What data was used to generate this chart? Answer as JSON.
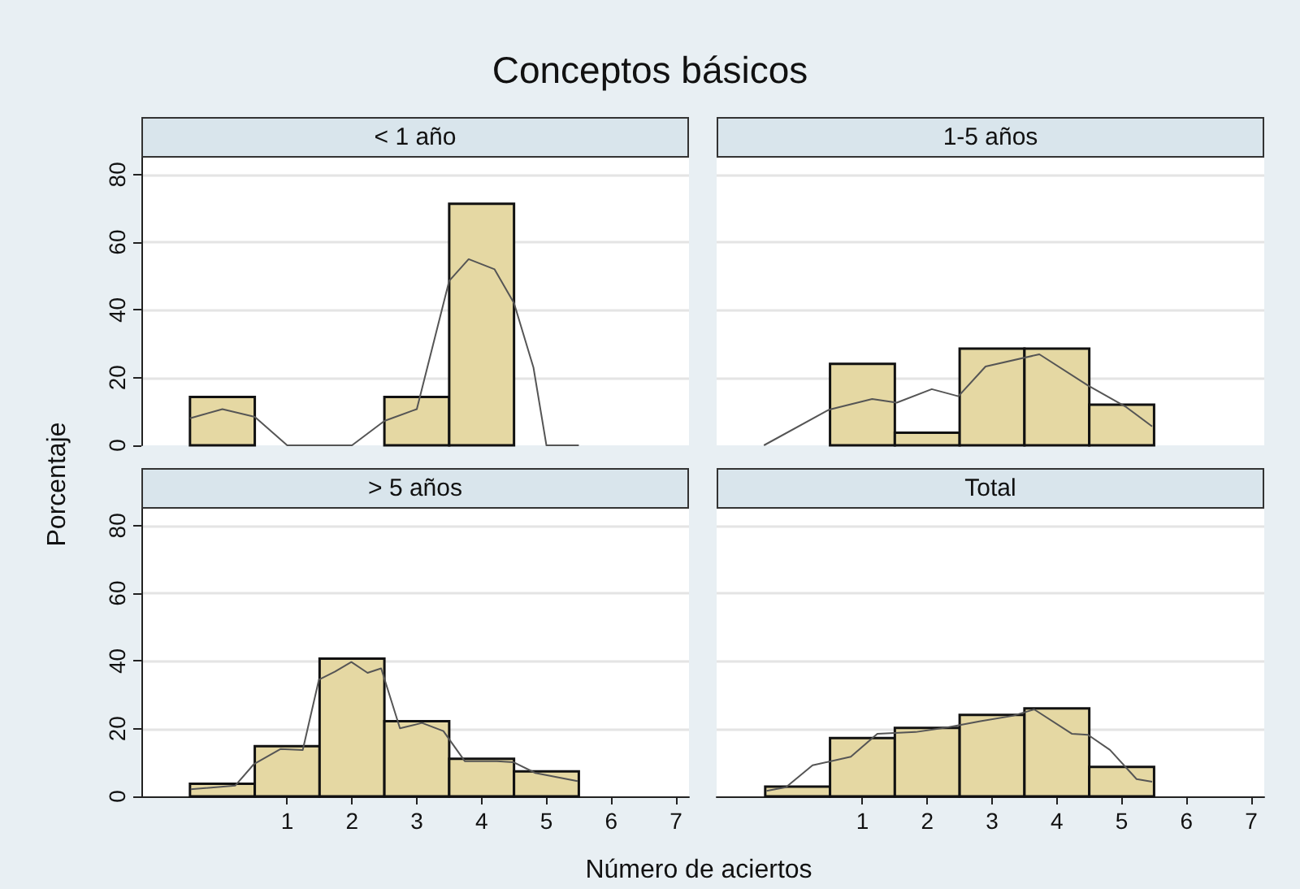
{
  "chart_data": [
    {
      "type": "histogram",
      "title": "Conceptos básicos",
      "subtitle": "< 1 año",
      "xlim": [
        -1.25,
        7.2
      ],
      "xticks": [
        1,
        2,
        3,
        4,
        5,
        6,
        7
      ],
      "ylim": [
        0,
        85
      ],
      "yticks": [
        0,
        20,
        40,
        60,
        80
      ],
      "grid": "y",
      "tick_labels": "y",
      "series": [
        {
          "type": "histogram",
          "color": "#e5d8a3",
          "bins": [
            -0.5,
            0.5,
            1.5,
            2.5,
            3.5,
            4.5,
            5.5
          ],
          "values": [
            14.3,
            0,
            0,
            14.3,
            71.4,
            0
          ]
        },
        {
          "type": "line",
          "color": "#555555",
          "x": [
            -0.5,
            0,
            0.5,
            1,
            2,
            2.5,
            3,
            3.5,
            3.8,
            4.2,
            4.5,
            4.8,
            5,
            5.5
          ],
          "values": [
            8,
            10.7,
            8.4,
            0,
            0,
            7.2,
            10.7,
            48.6,
            55,
            52,
            42,
            23,
            0,
            0
          ]
        }
      ]
    },
    {
      "type": "histogram",
      "subtitle": "1-5 años",
      "xlim": [
        -1.25,
        7.2
      ],
      "xticks": [
        1,
        2,
        3,
        4,
        5,
        6,
        7
      ],
      "ylim": [
        0,
        85
      ],
      "yticks": [
        0,
        20,
        40,
        60,
        80
      ],
      "grid": "y",
      "tick_labels": false,
      "series": [
        {
          "type": "histogram",
          "color": "#e5d8a3",
          "bins": [
            -0.5,
            0.5,
            1.5,
            2.5,
            3.5,
            4.5,
            5.5
          ],
          "values": [
            0,
            24.1,
            3.7,
            28.6,
            28.6,
            12
          ]
        },
        {
          "type": "line",
          "color": "#555555",
          "x": [
            -0.52,
            0.48,
            1.15,
            1.53,
            2.07,
            2.48,
            2.9,
            3.73,
            4.48,
            5.07,
            5.47
          ],
          "values": [
            0,
            10.5,
            13.7,
            12.6,
            16.6,
            14.5,
            23.3,
            26.9,
            17.7,
            11.3,
            5.6
          ]
        }
      ]
    },
    {
      "type": "histogram",
      "subtitle": "> 5 años",
      "xlabel": "Número de aciertos",
      "ylabel": "Porcentaje",
      "xlim": [
        -1.25,
        7.2
      ],
      "xticks": [
        1,
        2,
        3,
        4,
        5,
        6,
        7
      ],
      "ylim": [
        0,
        85
      ],
      "yticks": [
        0,
        20,
        40,
        60,
        80
      ],
      "grid": "y",
      "series": [
        {
          "type": "histogram",
          "color": "#e5d8a3",
          "bins": [
            -0.5,
            0.5,
            1.5,
            2.5,
            3.5,
            4.5,
            5.5
          ],
          "values": [
            3.7,
            14.8,
            40.7,
            22.2,
            11.1,
            7.4
          ]
        },
        {
          "type": "line",
          "color": "#555555",
          "x": [
            -0.49,
            0.2,
            0.49,
            0.9,
            1.24,
            1.49,
            1.74,
            1.99,
            2.24,
            2.45,
            2.74,
            3.08,
            3.41,
            3.74,
            4.24,
            4.49,
            4.83,
            5.48
          ],
          "values": [
            2.1,
            3.2,
            9.6,
            14,
            13.7,
            34.5,
            36.9,
            39.7,
            36.5,
            37.8,
            20.1,
            21.7,
            19.3,
            10.4,
            10.4,
            10.1,
            6.9,
            4.5
          ]
        }
      ]
    },
    {
      "type": "histogram",
      "subtitle": "Total",
      "xlim": [
        -1.25,
        7.2
      ],
      "xticks": [
        1,
        2,
        3,
        4,
        5,
        6,
        7
      ],
      "ylim": [
        0,
        85
      ],
      "yticks": [
        0,
        20,
        40,
        60,
        80
      ],
      "grid": "y",
      "tick_labels": "x",
      "series": [
        {
          "type": "histogram",
          "color": "#e5d8a3",
          "bins": [
            -0.5,
            0.5,
            1.5,
            2.5,
            3.5,
            4.5,
            5.5
          ],
          "values": [
            2.9,
            17.2,
            20.2,
            24.1,
            26,
            8.7
          ]
        },
        {
          "type": "line",
          "color": "#555555",
          "x": [
            -0.48,
            -0.18,
            0.23,
            0.82,
            1.23,
            1.82,
            2.32,
            2.82,
            3.32,
            3.65,
            4.23,
            4.48,
            4.82,
            5.23,
            5.47
          ],
          "values": [
            1.6,
            2.7,
            9.2,
            11.7,
            18.5,
            19,
            20.4,
            22.2,
            23.8,
            25.7,
            18.5,
            18.2,
            13.7,
            5.1,
            4.3
          ]
        }
      ]
    }
  ]
}
